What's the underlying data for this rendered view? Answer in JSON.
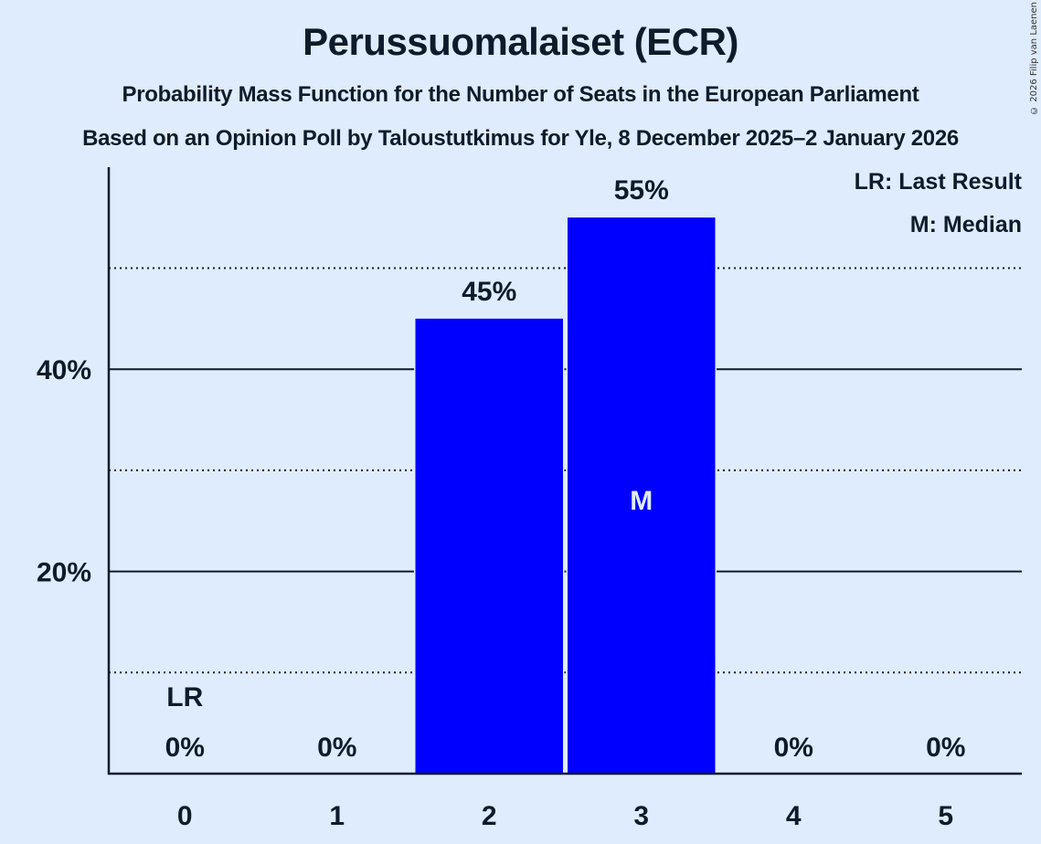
{
  "header": {
    "title": "Perussuomalaiset (ECR)",
    "subtitle": "Probability Mass Function for the Number of Seats in the European Parliament",
    "subtitle2": "Based on an Opinion Poll by Taloustutkimus for Yle, 8 December 2025–2 January 2026",
    "copyright": "© 2026 Filip van Laenen"
  },
  "legend": {
    "lr": "LR: Last Result",
    "m": "M: Median"
  },
  "colors": {
    "background": "#dfecfd",
    "bar": "#0000ff",
    "axis": "#0d1b2a",
    "median_label": "#dfecfd"
  },
  "chart_data": {
    "type": "bar",
    "title": "Perussuomalaiset (ECR)",
    "subtitle": "Probability Mass Function for the Number of Seats in the European Parliament",
    "xlabel": "",
    "ylabel": "",
    "categories": [
      "0",
      "1",
      "2",
      "3",
      "4",
      "5"
    ],
    "values": [
      0,
      0,
      45,
      55,
      0,
      0
    ],
    "value_labels": [
      "0%",
      "0%",
      "45%",
      "55%",
      "0%",
      "0%"
    ],
    "ylim": [
      0,
      60
    ],
    "yticks": [
      {
        "value": 20,
        "label": "20%"
      },
      {
        "value": 40,
        "label": "40%"
      }
    ],
    "minor_gridlines": [
      10,
      30,
      50
    ],
    "annotations": [
      {
        "category": "0",
        "text": "LR",
        "meaning": "Last Result"
      },
      {
        "category": "3",
        "text": "M",
        "meaning": "Median"
      }
    ],
    "legend_position": "top-right"
  }
}
